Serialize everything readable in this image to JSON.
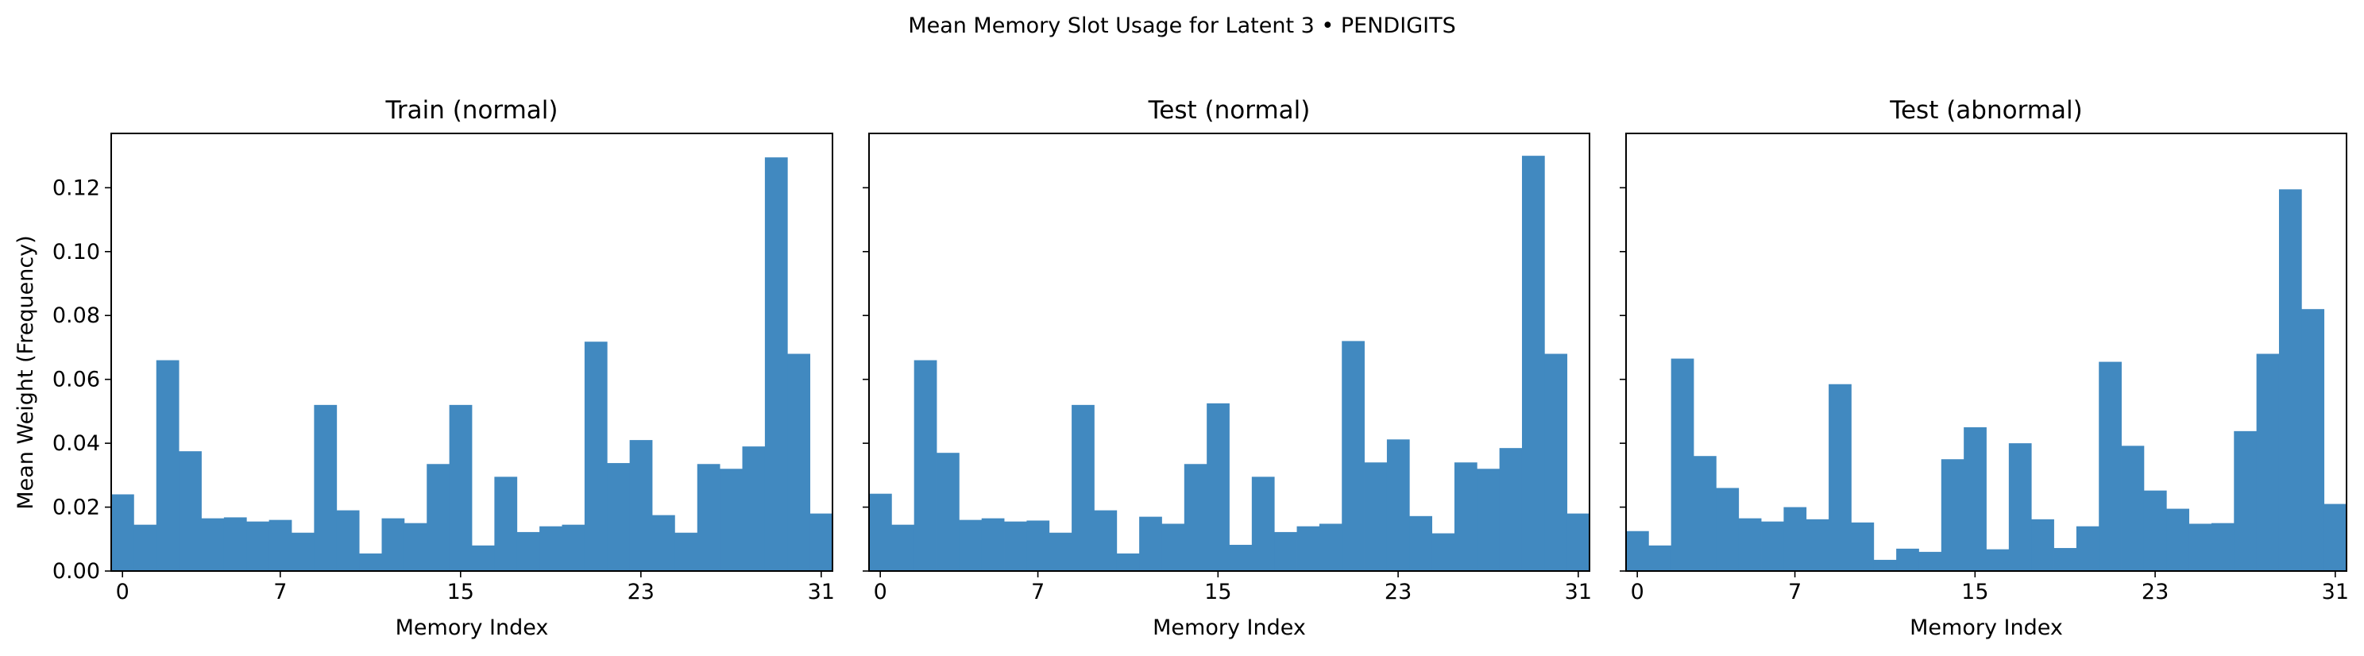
{
  "figure": {
    "suptitle": "Mean Memory Slot Usage for Latent 3 • PENDIGITS",
    "bar_color": "#4189c0",
    "axis_color": "#000000"
  },
  "chart_data": [
    {
      "type": "bar",
      "title": "Train (normal)",
      "xlabel": "Memory Index",
      "ylabel": "Mean Weight (Frequency)",
      "x": [
        0,
        1,
        2,
        3,
        4,
        5,
        6,
        7,
        8,
        9,
        10,
        11,
        12,
        13,
        14,
        15,
        16,
        17,
        18,
        19,
        20,
        21,
        22,
        23,
        24,
        25,
        26,
        27,
        28,
        29,
        30,
        31
      ],
      "values": [
        0.024,
        0.0145,
        0.066,
        0.0375,
        0.0165,
        0.0168,
        0.0155,
        0.016,
        0.012,
        0.052,
        0.019,
        0.0055,
        0.0165,
        0.015,
        0.0335,
        0.052,
        0.008,
        0.0295,
        0.0122,
        0.014,
        0.0145,
        0.0718,
        0.0338,
        0.041,
        0.0175,
        0.012,
        0.0335,
        0.032,
        0.039,
        0.1295,
        0.068,
        0.018
      ],
      "xticks": [
        0,
        7,
        15,
        23,
        31
      ],
      "ylim": [
        0,
        0.137
      ],
      "yticks": [
        "0.00",
        "0.02",
        "0.04",
        "0.06",
        "0.08",
        "0.10",
        "0.12"
      ],
      "show_ytick_labels": true
    },
    {
      "type": "bar",
      "title": "Test (normal)",
      "xlabel": "Memory Index",
      "ylabel": "",
      "x": [
        0,
        1,
        2,
        3,
        4,
        5,
        6,
        7,
        8,
        9,
        10,
        11,
        12,
        13,
        14,
        15,
        16,
        17,
        18,
        19,
        20,
        21,
        22,
        23,
        24,
        25,
        26,
        27,
        28,
        29,
        30,
        31
      ],
      "values": [
        0.0242,
        0.0145,
        0.066,
        0.037,
        0.016,
        0.0165,
        0.0155,
        0.0158,
        0.012,
        0.052,
        0.019,
        0.0055,
        0.017,
        0.0148,
        0.0335,
        0.0525,
        0.0082,
        0.0295,
        0.0122,
        0.014,
        0.0148,
        0.072,
        0.034,
        0.0412,
        0.0172,
        0.0118,
        0.034,
        0.032,
        0.0385,
        0.13,
        0.068,
        0.018
      ],
      "xticks": [
        0,
        7,
        15,
        23,
        31
      ],
      "ylim": [
        0,
        0.137
      ],
      "yticks": [
        "0.00",
        "0.02",
        "0.04",
        "0.06",
        "0.08",
        "0.10",
        "0.12"
      ],
      "show_ytick_labels": false
    },
    {
      "type": "bar",
      "title": "Test (abnormal)",
      "xlabel": "Memory Index",
      "ylabel": "",
      "x": [
        0,
        1,
        2,
        3,
        4,
        5,
        6,
        7,
        8,
        9,
        10,
        11,
        12,
        13,
        14,
        15,
        16,
        17,
        18,
        19,
        20,
        21,
        22,
        23,
        24,
        25,
        26,
        27,
        28,
        29,
        30,
        31
      ],
      "values": [
        0.0125,
        0.008,
        0.0665,
        0.036,
        0.026,
        0.0165,
        0.0155,
        0.02,
        0.0162,
        0.0585,
        0.0152,
        0.0035,
        0.007,
        0.006,
        0.035,
        0.045,
        0.0068,
        0.04,
        0.0162,
        0.0072,
        0.014,
        0.0655,
        0.0392,
        0.0252,
        0.0195,
        0.0148,
        0.015,
        0.0438,
        0.068,
        0.1195,
        0.082,
        0.021
      ],
      "xticks": [
        0,
        7,
        15,
        23,
        31
      ],
      "ylim": [
        0,
        0.137
      ],
      "yticks": [
        "0.00",
        "0.02",
        "0.04",
        "0.06",
        "0.08",
        "0.10",
        "0.12"
      ],
      "show_ytick_labels": false
    }
  ]
}
